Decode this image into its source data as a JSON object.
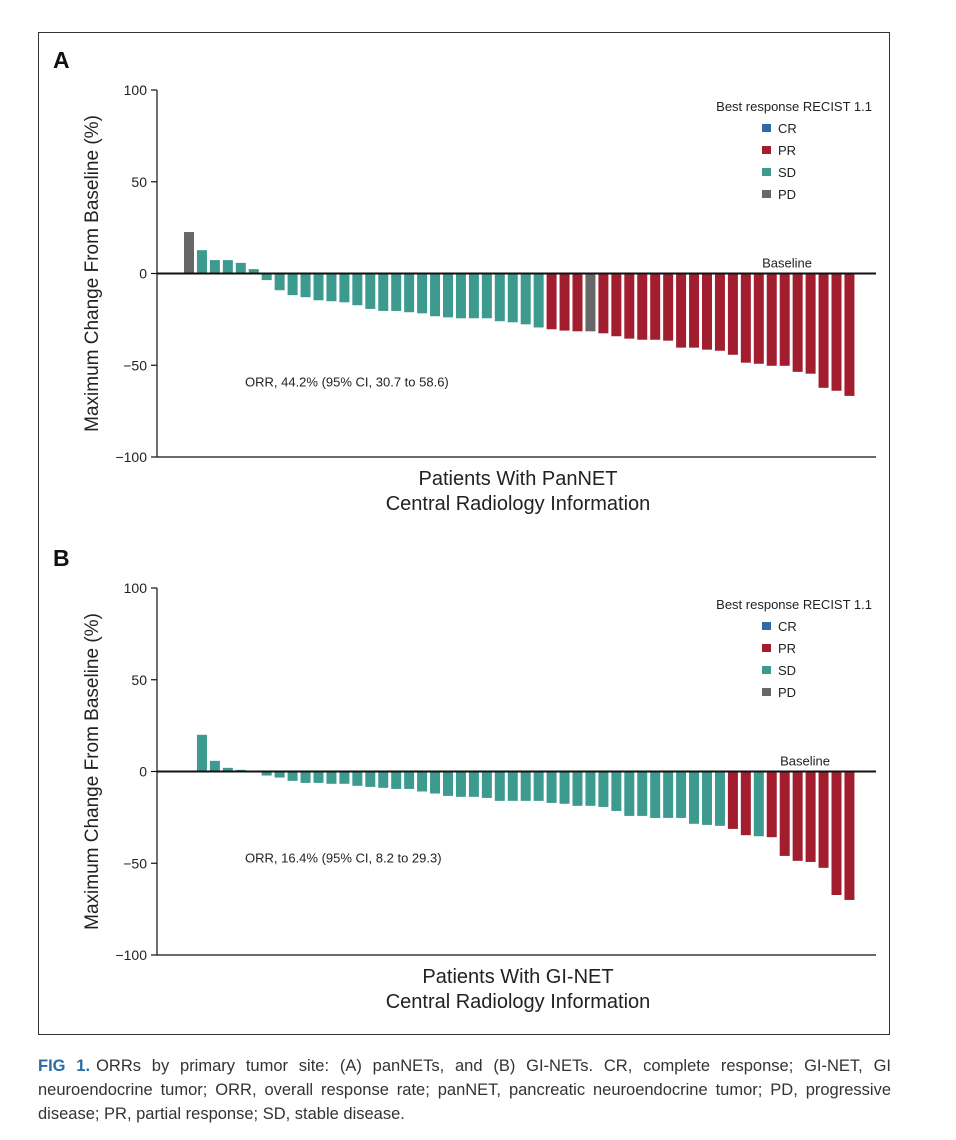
{
  "colors": {
    "CR": "#2e6aa5",
    "PR": "#a21e2f",
    "SD": "#3d9a8e",
    "PD": "#676767"
  },
  "chart_data": [
    {
      "type": "bar",
      "panel_label": "A",
      "ylabel": "Maximum Change From Baseline (%)",
      "xlabel": [
        "Patients With PanNET",
        "Central Radiology Information"
      ],
      "ylim": [
        -100,
        100
      ],
      "yticks": [
        100,
        50,
        0,
        -50,
        -100
      ],
      "ytick_labels": [
        "100",
        "50",
        "0",
        "−50",
        "−100"
      ],
      "baseline_label": "Baseline",
      "annotation": "ORR, 44.2% (95% CI, 30.7 to 58.6)",
      "legend": {
        "title": "Best response RECIST 1.1",
        "entries": [
          "CR",
          "PR",
          "SD",
          "PD"
        ],
        "placement": "top-right"
      },
      "values": [
        22.6,
        12.7,
        7.3,
        7.3,
        5.8,
        2.4,
        -3.6,
        -9.1,
        -11.8,
        -12.9,
        -14.6,
        -15.1,
        -15.7,
        -17.3,
        -19.3,
        -20.4,
        -20.4,
        -21.1,
        -21.7,
        -23.3,
        -23.9,
        -24.4,
        -24.4,
        -24.4,
        -26.0,
        -26.6,
        -27.7,
        -29.4,
        -30.4,
        -31.1,
        -31.5,
        -31.5,
        -32.6,
        -34.2,
        -35.5,
        -36.1,
        -36.1,
        -36.6,
        -40.4,
        -40.4,
        -41.5,
        -42.1,
        -44.3,
        -48.6,
        -49.2,
        -50.3,
        -50.3,
        -53.6,
        -54.6,
        -62.3,
        -63.9,
        -66.7
      ],
      "response": [
        "PD",
        "SD",
        "SD",
        "SD",
        "SD",
        "SD",
        "SD",
        "SD",
        "SD",
        "SD",
        "SD",
        "SD",
        "SD",
        "SD",
        "SD",
        "SD",
        "SD",
        "SD",
        "SD",
        "SD",
        "SD",
        "SD",
        "SD",
        "SD",
        "SD",
        "SD",
        "SD",
        "SD",
        "PR",
        "PR",
        "PR",
        "PD",
        "PR",
        "PR",
        "PR",
        "PR",
        "PR",
        "PR",
        "PR",
        "PR",
        "PR",
        "PR",
        "PR",
        "PR",
        "PR",
        "PR",
        "PR",
        "PR",
        "PR",
        "PR",
        "PR",
        "PR"
      ]
    },
    {
      "type": "bar",
      "panel_label": "B",
      "ylabel": "Maximum Change From Baseline (%)",
      "xlabel": [
        "Patients With GI-NET",
        "Central Radiology Information"
      ],
      "ylim": [
        -100,
        100
      ],
      "yticks": [
        100,
        50,
        0,
        -50,
        -100
      ],
      "ytick_labels": [
        "100",
        "50",
        "0",
        "−50",
        "−100"
      ],
      "baseline_label": "Baseline",
      "annotation": "ORR, 16.4% (95% CI, 8.2 to 29.3)",
      "legend": {
        "title": "Best response RECIST 1.1",
        "entries": [
          "CR",
          "PR",
          "SD",
          "PD"
        ],
        "placement": "top-right"
      },
      "values": [
        0,
        20.0,
        5.8,
        2.0,
        0.9,
        0,
        -2.2,
        -3.3,
        -5.1,
        -6.2,
        -6.2,
        -6.7,
        -6.7,
        -7.8,
        -8.4,
        -8.9,
        -9.5,
        -9.5,
        -10.9,
        -12.0,
        -13.3,
        -13.8,
        -13.8,
        -14.4,
        -16.0,
        -16.0,
        -16.0,
        -16.0,
        -17.1,
        -17.6,
        -18.7,
        -18.7,
        -19.3,
        -21.5,
        -24.2,
        -24.2,
        -25.3,
        -25.3,
        -25.3,
        -28.5,
        -29.1,
        -29.6,
        -31.3,
        -34.7,
        -35.3,
        -35.8,
        -46.0,
        -48.7,
        -49.3,
        -52.5,
        -67.3,
        -70.0
      ],
      "response": [
        "SD",
        "SD",
        "SD",
        "SD",
        "SD",
        "SD",
        "SD",
        "SD",
        "SD",
        "SD",
        "SD",
        "SD",
        "SD",
        "SD",
        "SD",
        "SD",
        "SD",
        "SD",
        "SD",
        "SD",
        "SD",
        "SD",
        "SD",
        "SD",
        "SD",
        "SD",
        "SD",
        "SD",
        "SD",
        "SD",
        "SD",
        "SD",
        "SD",
        "SD",
        "SD",
        "SD",
        "SD",
        "SD",
        "SD",
        "SD",
        "SD",
        "SD",
        "PR",
        "PR",
        "SD",
        "PR",
        "PR",
        "PR",
        "PR",
        "PR",
        "PR",
        "PR"
      ]
    }
  ],
  "caption": {
    "label": "FIG 1.",
    "text": "ORRs by primary tumor site: (A) panNETs, and (B) GI-NETs. CR, complete response; GI-NET, GI neuroendocrine tumor; ORR, overall response rate; panNET, pancreatic neuroendocrine tumor; PD, progressive disease; PR, partial response; SD, stable disease."
  }
}
